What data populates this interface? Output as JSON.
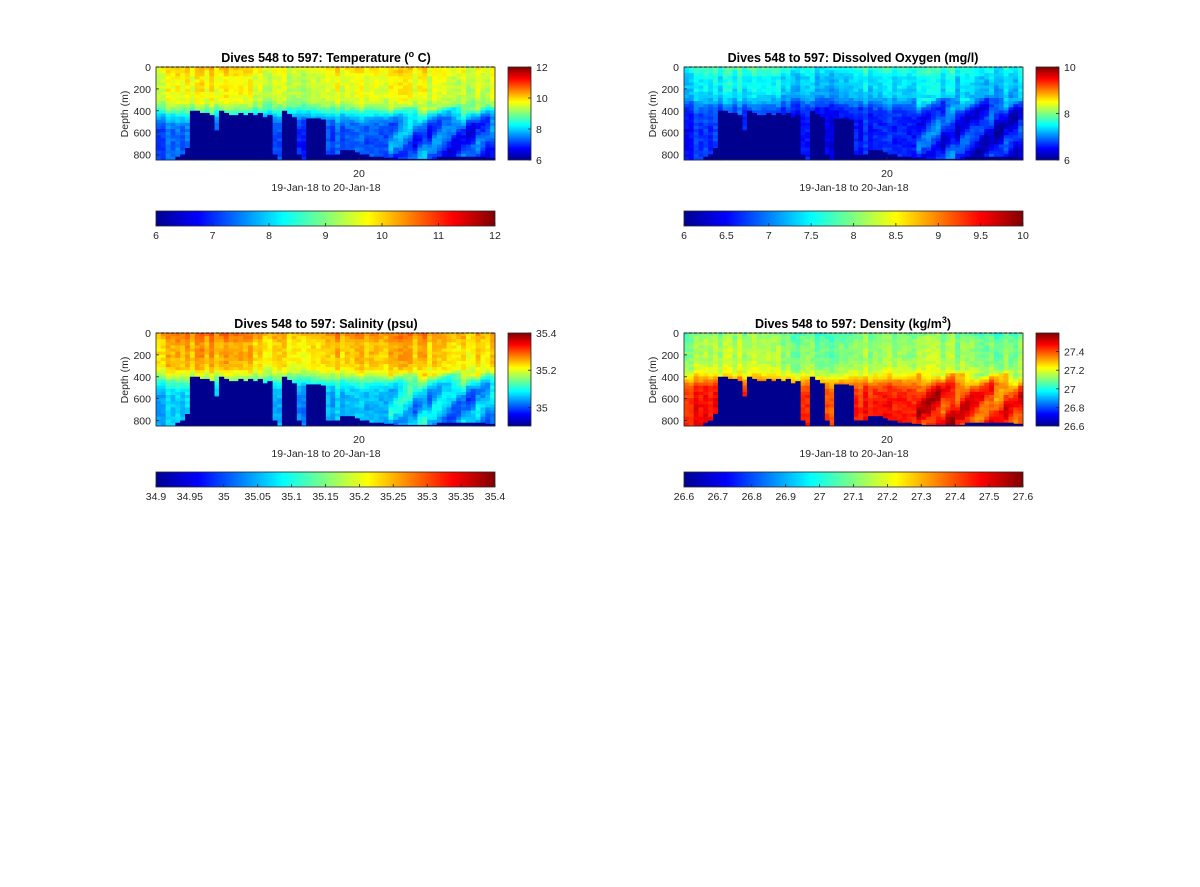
{
  "chart_data": [
    {
      "type": "heatmap",
      "title": "Dives 548 to 597: Temperature (",
      "title_sup": "o",
      "title_tail": " C)",
      "ylabel": "Depth (m)",
      "xtick": "20",
      "xlabel": "19-Jan-18 to 20-Jan-18",
      "yticks": [
        "0",
        "200",
        "400",
        "600",
        "800"
      ],
      "ylim": [
        0,
        850
      ],
      "clim": [
        6,
        12
      ],
      "colorbar_ticks": [
        "12",
        "10",
        "8",
        "6"
      ],
      "colorbar_ticks_values": [
        12,
        10,
        8,
        6
      ],
      "hcolorbar_ticks": [
        "6",
        "7",
        "8",
        "9",
        "10",
        "11",
        "12"
      ],
      "profile": {
        "surface": 9.9,
        "mid": 9.6,
        "deep": 7.2,
        "cline": 420
      },
      "colormap": "jet"
    },
    {
      "type": "heatmap",
      "title": "Dives 548 to 597: Dissolved Oxygen (mg/l)",
      "title_sup": "",
      "title_tail": "",
      "ylabel": "Depth (m)",
      "xtick": "20",
      "xlabel": "19-Jan-18 to 20-Jan-18",
      "yticks": [
        "0",
        "200",
        "400",
        "600",
        "800"
      ],
      "ylim": [
        0,
        850
      ],
      "clim": [
        6,
        10
      ],
      "colorbar_ticks": [
        "10",
        "8",
        "6"
      ],
      "colorbar_ticks_values": [
        10,
        8,
        6
      ],
      "hcolorbar_ticks": [
        "6",
        "6.5",
        "7",
        "7.5",
        "8",
        "8.5",
        "9",
        "9.5",
        "10"
      ],
      "profile": {
        "surface": 7.7,
        "mid": 7.4,
        "deep": 6.6,
        "cline": 330
      },
      "colormap": "jet"
    },
    {
      "type": "heatmap",
      "title": "Dives 548 to 597: Salinity (psu)",
      "title_sup": "",
      "title_tail": "",
      "ylabel": "Depth (m)",
      "xtick": "20",
      "xlabel": "19-Jan-18 to 20-Jan-18",
      "yticks": [
        "0",
        "200",
        "400",
        "600",
        "800"
      ],
      "ylim": [
        0,
        850
      ],
      "clim": [
        34.9,
        35.4
      ],
      "colorbar_ticks": [
        "35.4",
        "35.2",
        "35"
      ],
      "colorbar_ticks_values": [
        35.4,
        35.2,
        35.0
      ],
      "hcolorbar_ticks": [
        "34.9",
        "34.95",
        "35",
        "35.05",
        "35.1",
        "35.15",
        "35.2",
        "35.25",
        "35.3",
        "35.35",
        "35.4"
      ],
      "profile": {
        "surface": 35.27,
        "mid": 35.24,
        "deep": 35.05,
        "cline": 420
      },
      "colormap": "jet"
    },
    {
      "type": "heatmap",
      "title": "Dives 548 to 597: Density (kg/m",
      "title_sup": "3",
      "title_tail": ")",
      "ylabel": "Depth (m)",
      "xtick": "20",
      "xlabel": "19-Jan-18 to 20-Jan-18",
      "yticks": [
        "0",
        "200",
        "400",
        "600",
        "800"
      ],
      "ylim": [
        0,
        850
      ],
      "clim": [
        26.6,
        27.6
      ],
      "colorbar_ticks": [
        "27.4",
        "27.2",
        "27",
        "26.8",
        "26.6"
      ],
      "colorbar_ticks_values": [
        27.4,
        27.2,
        27.0,
        26.8,
        26.6
      ],
      "hcolorbar_ticks": [
        "26.6",
        "26.7",
        "26.8",
        "26.9",
        "27",
        "27.1",
        "27.2",
        "27.3",
        "27.4",
        "27.5",
        "27.6"
      ],
      "profile": {
        "surface": 27.08,
        "mid": 27.12,
        "deep": 27.45,
        "cline": 420
      },
      "colormap": "jet"
    }
  ],
  "seabed_depths_m": [
    850,
    850,
    850,
    850,
    820,
    800,
    740,
    400,
    400,
    420,
    420,
    440,
    580,
    400,
    420,
    440,
    440,
    420,
    440,
    420,
    440,
    420,
    460,
    440,
    800,
    850,
    400,
    430,
    460,
    800,
    850,
    470,
    470,
    470,
    480,
    800,
    800,
    800,
    760,
    760,
    760,
    780,
    800,
    800,
    820,
    820,
    820,
    830,
    830,
    840,
    840,
    840,
    840,
    840,
    840,
    840,
    840,
    840,
    820,
    820,
    820,
    820,
    820,
    820,
    820,
    820,
    820,
    820,
    830,
    830
  ]
}
